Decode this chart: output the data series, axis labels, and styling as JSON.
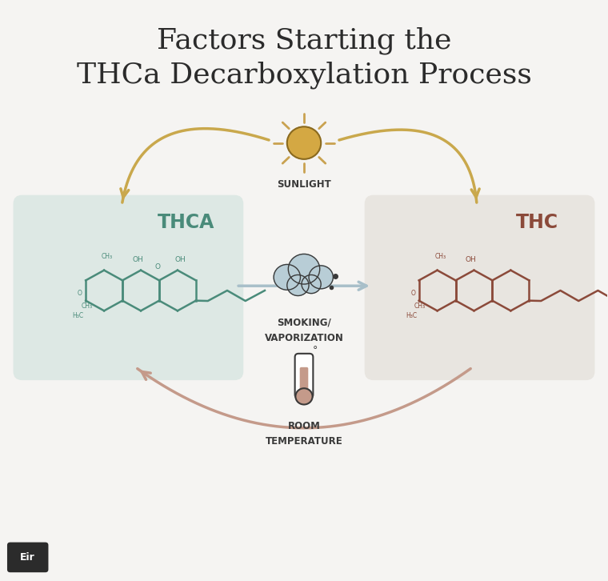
{
  "title_line1": "Factors Starting the",
  "title_line2": "THCa Decarboxylation Process",
  "title_fontsize": 26,
  "title_color": "#2b2b2b",
  "bg_color": "#f5f4f2",
  "box_color_thca": "#dde8e4",
  "box_color_thc": "#e8e5e0",
  "label_thca": "THCA",
  "label_thc": "THC",
  "label_sunlight": "SUNLIGHT",
  "label_smoking_1": "SMOKING/",
  "label_smoking_2": "VAPORIZATION",
  "label_room_temp_1": "ROOM",
  "label_room_temp_2": "TEMPERATURE",
  "arrow_sunlight_color": "#c9a84c",
  "arrow_smoking_color": "#a8bfc9",
  "arrow_room_temp_color": "#c49a8a",
  "label_color": "#3a3a3a",
  "thca_color": "#4a8b7a",
  "thc_color": "#8b4a3a",
  "brand_text": "Eir",
  "brand_bg": "#2b2b2b",
  "brand_color": "#ffffff"
}
